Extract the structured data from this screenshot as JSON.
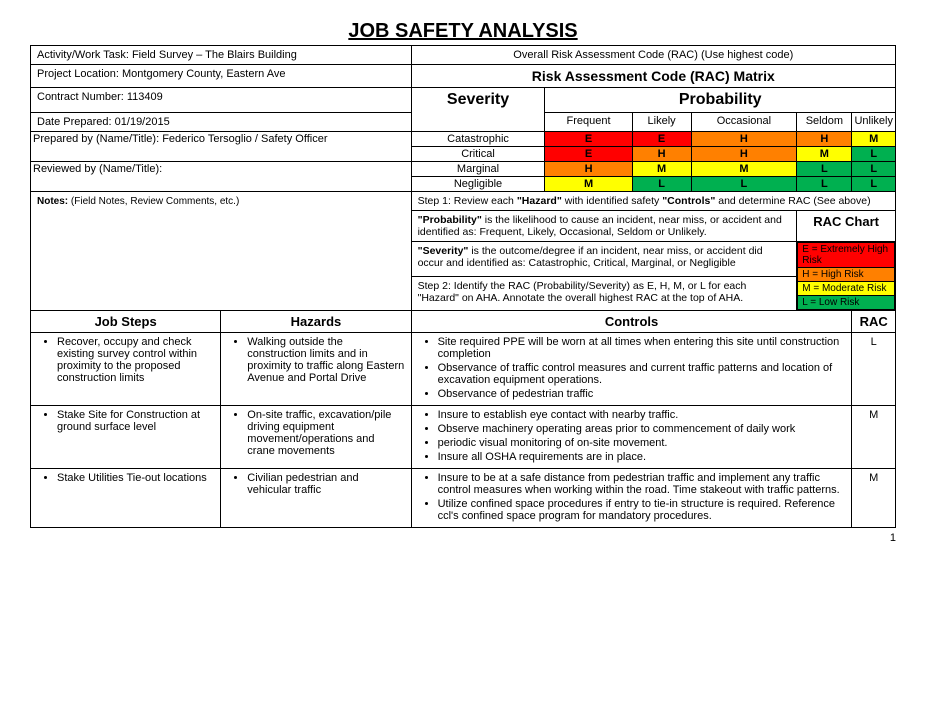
{
  "title": "JOB SAFETY ANALYSIS",
  "header": {
    "activity_label": "Activity/Work Task: ",
    "activity_value": "Field Survey – The Blairs Building",
    "overall_rac_label": "Overall Risk Assessment Code (RAC)  (Use highest code)",
    "location_label": "Project Location: ",
    "location_value": "Montgomery County, Eastern Ave",
    "matrix_title": "Risk Assessment Code (RAC) Matrix",
    "contract_label": "Contract Number: ",
    "contract_value": "113409",
    "date_label": "Date Prepared: ",
    "date_value": "01/19/2015",
    "prepared_label": "Prepared by (Name/Title): ",
    "prepared_value": "Federico Tersoglio / Safety Officer",
    "reviewed_label": "Reviewed by (Name/Title):",
    "reviewed_value": ""
  },
  "matrix": {
    "severity_label": "Severity",
    "probability_label": "Probability",
    "prob_cols": [
      "Frequent",
      "Likely",
      "Occasional",
      "Seldom",
      "Unlikely"
    ],
    "rows": [
      {
        "label": "Catastrophic",
        "cells": [
          {
            "v": "E",
            "c": "#ff0000"
          },
          {
            "v": "E",
            "c": "#ff0000"
          },
          {
            "v": "H",
            "c": "#ff8000"
          },
          {
            "v": "H",
            "c": "#ff8000"
          },
          {
            "v": "M",
            "c": "#ffff00"
          }
        ]
      },
      {
        "label": "Critical",
        "cells": [
          {
            "v": "E",
            "c": "#ff0000"
          },
          {
            "v": "H",
            "c": "#ff8000"
          },
          {
            "v": "H",
            "c": "#ff8000"
          },
          {
            "v": "M",
            "c": "#ffff00"
          },
          {
            "v": "L",
            "c": "#00b050"
          }
        ]
      },
      {
        "label": "Marginal",
        "cells": [
          {
            "v": "H",
            "c": "#ff8000"
          },
          {
            "v": "M",
            "c": "#ffff00"
          },
          {
            "v": "M",
            "c": "#ffff00"
          },
          {
            "v": "L",
            "c": "#00b050"
          },
          {
            "v": "L",
            "c": "#00b050"
          }
        ]
      },
      {
        "label": "Negligible",
        "cells": [
          {
            "v": "M",
            "c": "#ffff00"
          },
          {
            "v": "L",
            "c": "#00b050"
          },
          {
            "v": "L",
            "c": "#00b050"
          },
          {
            "v": "L",
            "c": "#00b050"
          },
          {
            "v": "L",
            "c": "#00b050"
          }
        ]
      }
    ]
  },
  "notes": {
    "label": "Notes:",
    "sub": " (Field Notes, Review Comments, etc.)"
  },
  "steps": {
    "step1": "Step 1: Review each \"Hazard\" with identified safety \"Controls\" and determine RAC (See above)",
    "prob_def": "\"Probability\" is the likelihood to cause an incident, near miss, or accident and identified as: Frequent, Likely, Occasional, Seldom or Unlikely.",
    "sev_def": "\"Severity\" is the outcome/degree if an incident, near miss, or accident did occur and identified as: Catastrophic, Critical, Marginal, or Negligible",
    "step2": "Step 2:  Identify the RAC (Probability/Severity) as E, H, M, or L for each \"Hazard\" on AHA.  Annotate the overall highest RAC at the top of AHA."
  },
  "rac_chart": {
    "title": "RAC Chart",
    "rows": [
      {
        "label": "E = Extremely High Risk",
        "bg": "#ff0000",
        "fg": "#000000"
      },
      {
        "label": "H = High Risk",
        "bg": "#ff8000",
        "fg": "#000000"
      },
      {
        "label": "M =  Moderate Risk",
        "bg": "#ffff00",
        "fg": "#000000"
      },
      {
        "label": "L = Low Risk",
        "bg": "#00b050",
        "fg": "#000000"
      }
    ]
  },
  "job_table": {
    "headers": [
      "Job Steps",
      "Hazards",
      "Controls",
      "RAC"
    ],
    "rows": [
      {
        "steps": [
          "Recover, occupy and check existing survey control within proximity to the proposed construction limits"
        ],
        "hazards": [
          "Walking outside the construction limits and in proximity to traffic along Eastern Avenue and Portal Drive"
        ],
        "controls": [
          "Site required PPE will be worn at all times when entering this site until construction completion",
          "Observance of traffic control measures and current traffic patterns and location of excavation equipment operations.",
          "Observance of pedestrian traffic"
        ],
        "rac": "L"
      },
      {
        "steps": [
          "Stake Site for Construction at ground surface level"
        ],
        "hazards": [
          "On-site traffic, excavation/pile driving equipment movement/operations and crane movements"
        ],
        "controls": [
          "Insure to establish eye contact with nearby traffic.",
          "Observe machinery operating areas prior to commencement of daily work",
          " periodic visual monitoring of on-site movement.",
          "Insure all OSHA requirements are in place."
        ],
        "rac": "M"
      },
      {
        "steps": [
          "Stake Utilities Tie-out locations"
        ],
        "hazards": [
          "Civilian pedestrian and vehicular traffic"
        ],
        "controls": [
          "Insure to be at a safe distance from pedestrian traffic and implement any traffic control measures when working within the road. Time stakeout with traffic patterns.",
          "Utilize confined space procedures if entry to tie-in structure is required. Reference ccl's confined space program for mandatory procedures."
        ],
        "rac": "M"
      }
    ]
  },
  "page_number": "1"
}
